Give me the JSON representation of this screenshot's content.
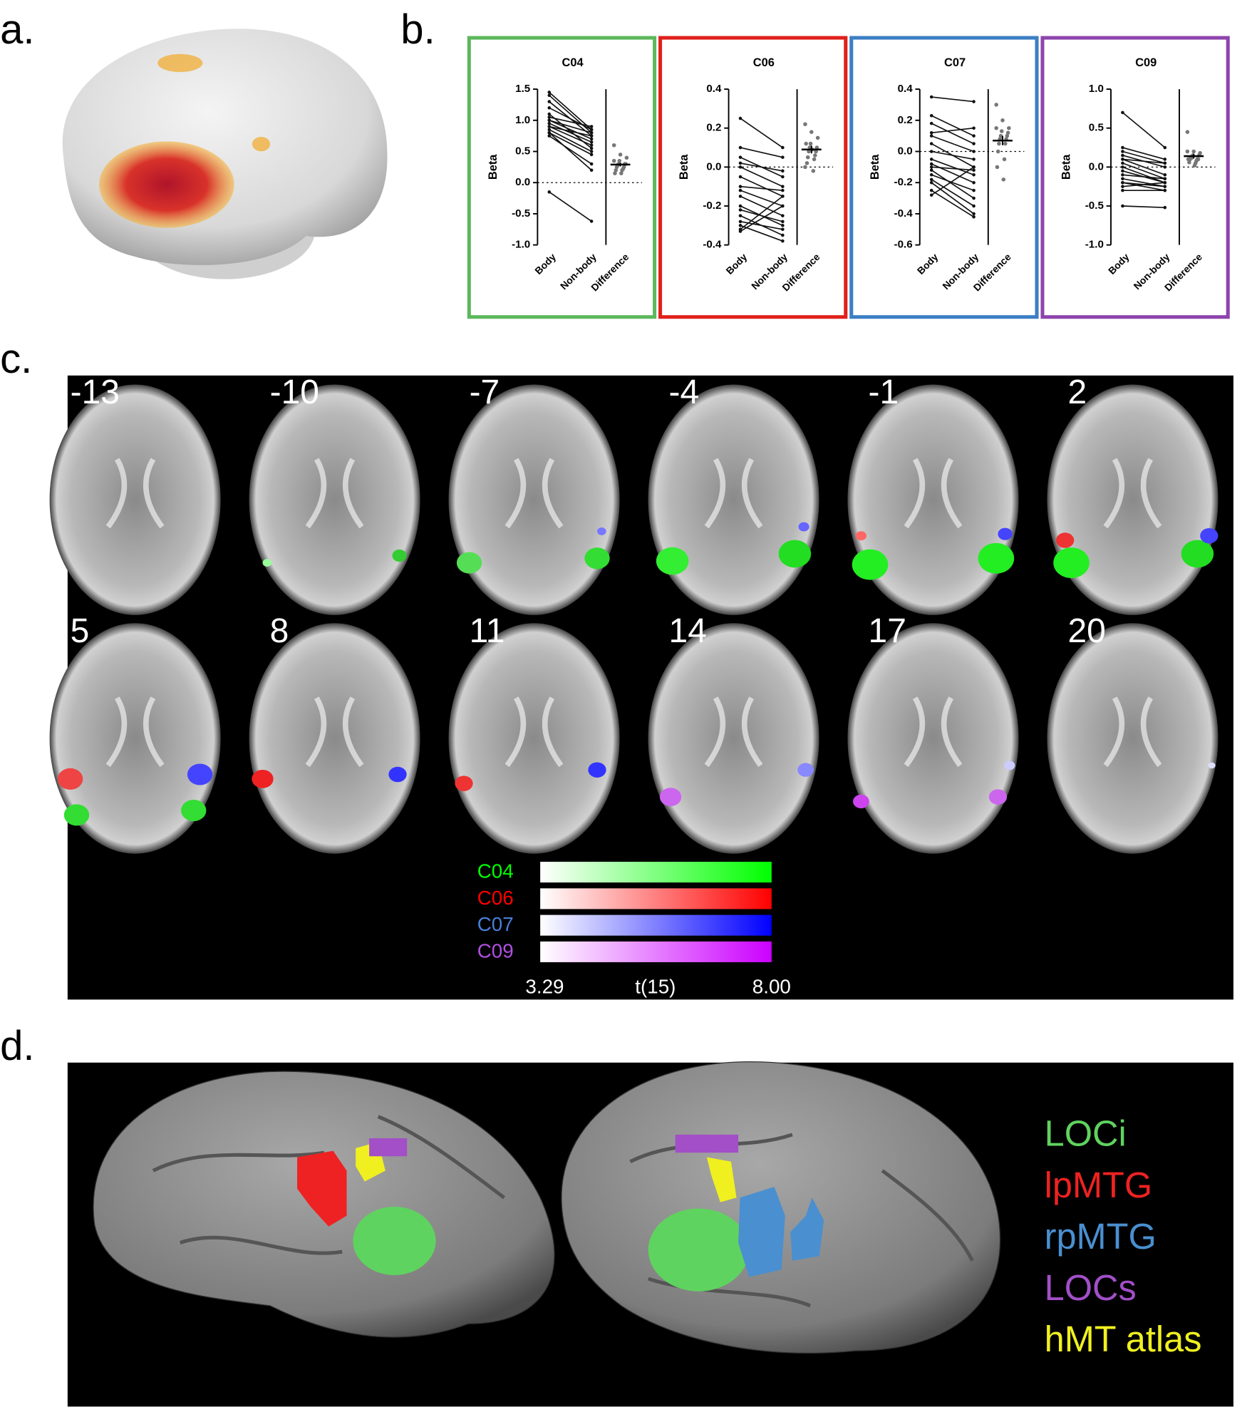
{
  "panel_labels": [
    "a.",
    "b.",
    "c.",
    "d."
  ],
  "chart_data": [
    {
      "type": "paired",
      "title": "C04",
      "y_label": "Beta",
      "categories": [
        "Body",
        "Non-body",
        "Difference"
      ],
      "frame_color": "#5cb85c",
      "ylim": [
        -1,
        1.5
      ],
      "yticks": [
        {
          "value": -1,
          "label": "-1.0"
        },
        -0.5,
        {
          "value": 0,
          "label": "0.0"
        },
        0.5,
        {
          "value": 1,
          "label": "1.0"
        },
        1.5
      ],
      "body": [
        1.45,
        1.4,
        1.3,
        1.1,
        1.05,
        1.0,
        1.0,
        0.95,
        0.9,
        0.9,
        0.85,
        0.8,
        0.8,
        1.2,
        0.75,
        -0.15
      ],
      "non_body": [
        0.85,
        0.8,
        0.75,
        0.55,
        0.9,
        0.8,
        0.7,
        0.65,
        0.6,
        0.75,
        0.5,
        0.45,
        0.2,
        0.85,
        0.3,
        -0.62
      ],
      "difference": [
        0.6,
        0.45,
        0.4,
        0.35,
        0.3,
        0.3,
        0.3,
        0.28,
        0.25,
        0.25,
        0.22,
        0.2,
        0.2,
        0.15,
        0.15,
        0.35
      ],
      "difference_mean": 0.29,
      "difference_sem": 0.03
    },
    {
      "type": "paired",
      "title": "C06",
      "y_label": "Beta",
      "categories": [
        "Body",
        "Non-body",
        "Difference"
      ],
      "frame_color": "#e0201b",
      "ylim": [
        -0.4,
        0.4
      ],
      "yticks": [
        -0.4,
        -0.2,
        {
          "value": 0,
          "label": "0.0"
        },
        0.2,
        0.4
      ],
      "body": [
        0.25,
        0.1,
        0.05,
        0.0,
        -0.05,
        -0.1,
        -0.12,
        -0.15,
        -0.2,
        -0.22,
        -0.25,
        -0.28,
        -0.3,
        -0.32,
        -0.33,
        0.02
      ],
      "non_body": [
        0.1,
        0.05,
        -0.05,
        -0.1,
        -0.15,
        -0.12,
        -0.2,
        -0.25,
        -0.3,
        -0.28,
        -0.35,
        -0.32,
        -0.38,
        -0.15,
        -0.2,
        -0.02
      ],
      "difference": [
        0.22,
        0.18,
        0.15,
        0.12,
        0.1,
        0.1,
        0.08,
        0.08,
        0.06,
        0.05,
        0.04,
        0.02,
        -0.02,
        0.12,
        0.09,
        0.0
      ],
      "difference_mean": 0.09,
      "difference_sem": 0.02
    },
    {
      "type": "paired",
      "title": "C07",
      "y_label": "Beta",
      "categories": [
        "Body",
        "Non-body",
        "Difference"
      ],
      "frame_color": "#3b7fc4",
      "ylim": [
        -0.6,
        0.4
      ],
      "yticks": [
        -0.6,
        -0.4,
        -0.2,
        {
          "value": 0,
          "label": "0.0"
        },
        0.2,
        0.4
      ],
      "body": [
        0.35,
        0.23,
        0.18,
        0.1,
        0.05,
        0.0,
        -0.05,
        -0.08,
        -0.1,
        -0.12,
        -0.15,
        -0.18,
        -0.2,
        -0.25,
        -0.28,
        0.12
      ],
      "non_body": [
        0.32,
        0.1,
        0.05,
        0.0,
        -0.1,
        -0.05,
        -0.15,
        -0.2,
        -0.12,
        -0.3,
        -0.25,
        -0.35,
        -0.4,
        -0.42,
        -0.1,
        0.15
      ],
      "difference": [
        0.3,
        0.2,
        0.15,
        0.13,
        0.12,
        0.1,
        0.1,
        0.08,
        0.08,
        0.05,
        0.05,
        0.0,
        -0.05,
        -0.1,
        -0.18,
        0.15
      ],
      "difference_mean": 0.07,
      "difference_sem": 0.03
    },
    {
      "type": "paired",
      "title": "C09",
      "y_label": "Beta",
      "categories": [
        "Body",
        "Non-body",
        "Difference"
      ],
      "frame_color": "#8e44ad",
      "ylim": [
        -1,
        1
      ],
      "yticks": [
        {
          "value": -1,
          "label": "-1.0"
        },
        -0.5,
        {
          "value": 0,
          "label": "0.0"
        },
        0.5,
        {
          "value": 1,
          "label": "1.0"
        }
      ],
      "body": [
        0.7,
        0.25,
        0.2,
        0.15,
        0.1,
        0.05,
        0.0,
        -0.05,
        -0.1,
        -0.15,
        -0.2,
        -0.2,
        -0.25,
        -0.3,
        -0.5,
        0.1
      ],
      "non_body": [
        0.25,
        0.1,
        0.05,
        0.0,
        -0.1,
        -0.15,
        -0.2,
        -0.2,
        -0.15,
        -0.25,
        -0.3,
        -0.25,
        -0.2,
        -0.3,
        -0.52,
        0.05
      ],
      "difference": [
        0.45,
        0.2,
        0.18,
        0.15,
        0.15,
        0.12,
        0.1,
        0.12,
        0.1,
        0.1,
        0.08,
        0.06,
        0.05,
        0.1,
        0.02,
        0.2
      ],
      "difference_mean": 0.14,
      "difference_sem": 0.03
    }
  ],
  "panel_c": {
    "slices": [
      -13,
      -10,
      -7,
      -4,
      -1,
      2,
      5,
      8,
      11,
      14,
      17,
      20
    ],
    "colorbar": {
      "names": [
        "C04",
        "C06",
        "C07",
        "C09"
      ],
      "colors": [
        "#00ff00",
        "#ff0000",
        "#0000ff",
        "#cc00ff"
      ],
      "min_label": "3.29",
      "axis_label": "t(15)",
      "max_label": "8.00"
    }
  },
  "panel_d": {
    "legend": [
      {
        "name": "LOCi",
        "color": "#5fd35f"
      },
      {
        "name": "lpMTG",
        "color": "#ee2222"
      },
      {
        "name": "rpMTG",
        "color": "#4a8fd0"
      },
      {
        "name": "LOCs",
        "color": "#a24fc8"
      },
      {
        "name": "hMT atlas",
        "color": "#f0f020"
      }
    ]
  }
}
